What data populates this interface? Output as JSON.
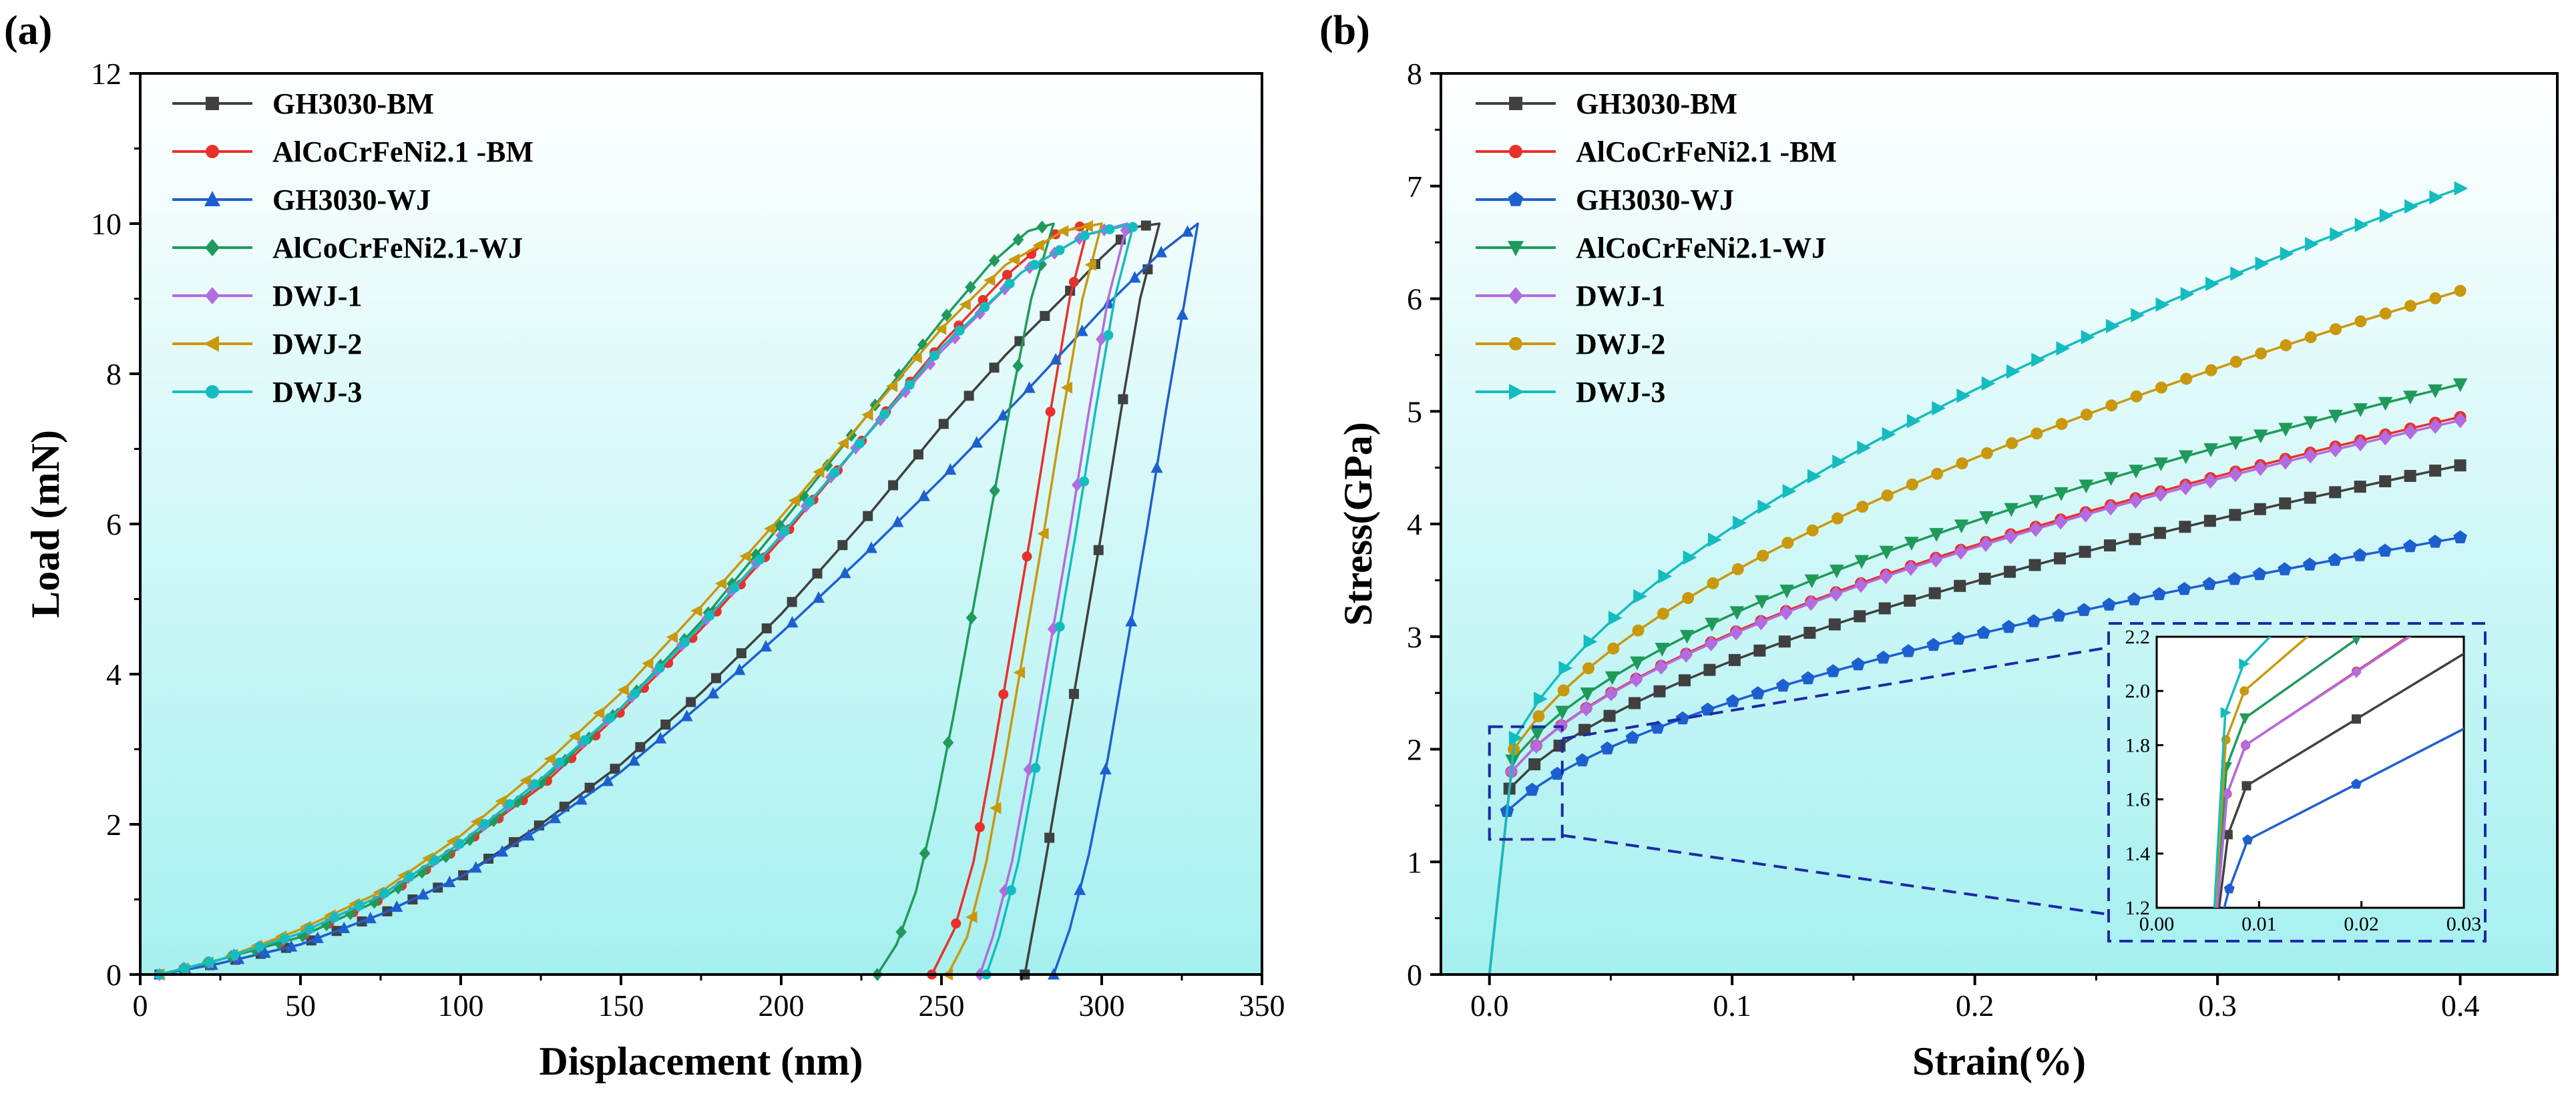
{
  "colors": {
    "GH3030-BM": "#404040",
    "AlCoCrFeNi2.1 -BM": "#e8312a",
    "GH3030-WJ": "#1e5fd0",
    "AlCoCrFeNi2.1-WJ": "#1f9a5a",
    "DWJ-1": "#b26be0",
    "DWJ-2": "#c9980c",
    "DWJ-3": "#14bcc0",
    "plot_bg_top": "#ffffff",
    "plot_bg_bottom": "#a6f0f0",
    "inset_border": "#1c2aa8"
  },
  "chart_data": [
    {
      "panel_label": "(a)",
      "type": "line",
      "xlabel": "Displacement (nm)",
      "ylabel": "Load (mN)",
      "xlim": [
        0,
        350
      ],
      "ylim": [
        0,
        12
      ],
      "xticks": [
        "0",
        "50",
        "100",
        "150",
        "200",
        "250",
        "300",
        "350"
      ],
      "yticks": [
        "0",
        "2",
        "4",
        "6",
        "8",
        "10",
        "12"
      ],
      "legend_position": "top-left",
      "series": [
        {
          "name": "GH3030-BM",
          "marker": "square",
          "x": [
            6,
            25,
            50,
            75,
            100,
            125,
            150,
            175,
            200,
            225,
            250,
            270,
            290,
            300,
            310,
            318,
            312,
            306,
            300,
            294,
            288,
            282,
            276
          ],
          "y": [
            0,
            0.15,
            0.4,
            0.8,
            1.3,
            2.0,
            2.8,
            3.75,
            4.8,
            6.0,
            7.3,
            8.25,
            9.1,
            9.55,
            9.95,
            10.0,
            9.0,
            7.5,
            5.9,
            4.4,
            2.9,
            1.4,
            0
          ]
        },
        {
          "name": "AlCoCrFeNi2.1 -BM",
          "marker": "circle",
          "x": [
            6,
            25,
            50,
            75,
            100,
            125,
            150,
            175,
            200,
            225,
            250,
            270,
            285,
            296,
            290,
            284,
            278,
            272,
            266,
            260,
            254,
            247
          ],
          "y": [
            0,
            0.2,
            0.5,
            1.0,
            1.7,
            2.5,
            3.5,
            4.6,
            5.8,
            7.1,
            8.4,
            9.3,
            9.85,
            10.0,
            9.0,
            7.5,
            5.9,
            4.4,
            2.9,
            1.5,
            0.6,
            0
          ]
        },
        {
          "name": "GH3030-WJ",
          "marker": "triangle-up",
          "x": [
            6,
            25,
            50,
            75,
            100,
            125,
            150,
            175,
            200,
            225,
            250,
            275,
            300,
            318,
            330,
            326,
            320,
            314,
            308,
            302,
            296,
            290,
            285
          ],
          "y": [
            0,
            0.15,
            0.4,
            0.8,
            1.3,
            1.95,
            2.7,
            3.6,
            4.55,
            5.55,
            6.6,
            7.7,
            8.85,
            9.6,
            10.0,
            9.0,
            7.5,
            5.9,
            4.4,
            2.9,
            1.6,
            0.6,
            0
          ]
        },
        {
          "name": "AlCoCrFeNi2.1-WJ",
          "marker": "diamond",
          "x": [
            6,
            25,
            50,
            75,
            100,
            125,
            150,
            175,
            200,
            225,
            250,
            265,
            277,
            285,
            278,
            272,
            266,
            260,
            254,
            248,
            242,
            236,
            230
          ],
          "y": [
            0,
            0.2,
            0.5,
            1.0,
            1.7,
            2.55,
            3.55,
            4.7,
            6.0,
            7.35,
            8.7,
            9.45,
            9.9,
            10.0,
            9.0,
            7.7,
            6.3,
            4.9,
            3.5,
            2.2,
            1.1,
            0.4,
            0
          ]
        },
        {
          "name": "DWJ-1",
          "marker": "diamond",
          "x": [
            6,
            25,
            50,
            75,
            100,
            125,
            150,
            175,
            200,
            225,
            250,
            275,
            295,
            308,
            302,
            296,
            290,
            284,
            278,
            272,
            266,
            262
          ],
          "y": [
            0,
            0.2,
            0.55,
            1.05,
            1.75,
            2.6,
            3.55,
            4.65,
            5.85,
            7.1,
            8.3,
            9.35,
            9.85,
            10.0,
            9.0,
            7.5,
            5.9,
            4.4,
            2.9,
            1.5,
            0.5,
            0
          ]
        },
        {
          "name": "DWJ-2",
          "marker": "triangle-left",
          "x": [
            6,
            25,
            50,
            75,
            100,
            125,
            150,
            175,
            200,
            225,
            250,
            270,
            288,
            300,
            294,
            288,
            282,
            276,
            270,
            264,
            258,
            252
          ],
          "y": [
            0,
            0.2,
            0.6,
            1.1,
            1.85,
            2.75,
            3.75,
            4.9,
            6.1,
            7.35,
            8.6,
            9.45,
            9.9,
            10.0,
            9.0,
            7.5,
            5.9,
            4.4,
            2.9,
            1.5,
            0.5,
            0
          ]
        },
        {
          "name": "DWJ-3",
          "marker": "circle",
          "x": [
            6,
            25,
            50,
            75,
            100,
            125,
            150,
            175,
            200,
            225,
            250,
            275,
            295,
            310,
            304,
            298,
            292,
            286,
            280,
            274,
            268,
            264
          ],
          "y": [
            0,
            0.2,
            0.55,
            1.05,
            1.75,
            2.6,
            3.55,
            4.65,
            5.85,
            7.1,
            8.35,
            9.35,
            9.85,
            10.0,
            9.0,
            7.5,
            5.9,
            4.4,
            2.9,
            1.5,
            0.5,
            0
          ]
        }
      ]
    },
    {
      "panel_label": "(b)",
      "type": "line",
      "xlabel": "Strain(%)",
      "ylabel": "Stress(GPa)",
      "xlim": [
        -0.02,
        0.44
      ],
      "ylim": [
        0,
        8
      ],
      "xticks": [
        "0.0",
        "0.1",
        "0.2",
        "0.3",
        "0.4"
      ],
      "yticks": [
        "0",
        "1",
        "2",
        "3",
        "4",
        "5",
        "6",
        "7",
        "8"
      ],
      "legend_position": "top-left",
      "series": [
        {
          "name": "GH3030-BM",
          "marker": "square",
          "y_at_0.01": 1.65,
          "y_at_0.4": 4.52
        },
        {
          "name": "AlCoCrFeNi2.1 -BM",
          "marker": "circle",
          "y_at_0.01": 1.8,
          "y_at_0.4": 4.95
        },
        {
          "name": "GH3030-WJ",
          "marker": "pentagon",
          "y_at_0.01": 1.45,
          "y_at_0.4": 3.88
        },
        {
          "name": "AlCoCrFeNi2.1-WJ",
          "marker": "triangle-down",
          "y_at_0.01": 1.9,
          "y_at_0.4": 5.24
        },
        {
          "name": "DWJ-1",
          "marker": "diamond",
          "y_at_0.01": 1.8,
          "y_at_0.4": 4.92
        },
        {
          "name": "DWJ-2",
          "marker": "circle",
          "y_at_0.01": 2.0,
          "y_at_0.4": 6.07
        },
        {
          "name": "DWJ-3",
          "marker": "triangle-right",
          "y_at_0.01": 2.1,
          "y_at_0.4": 6.98
        }
      ],
      "inset": {
        "xlim": [
          0.0,
          0.03
        ],
        "ylim": [
          1.2,
          2.2
        ],
        "xticks": [
          "0.00",
          "0.01",
          "0.02",
          "0.03"
        ],
        "yticks": [
          "1.2",
          "1.4",
          "1.6",
          "1.8",
          "2.0",
          "2.2"
        ],
        "zoom_box": {
          "x": [
            0.0,
            0.03
          ],
          "y": [
            1.2,
            2.2
          ]
        }
      }
    }
  ]
}
